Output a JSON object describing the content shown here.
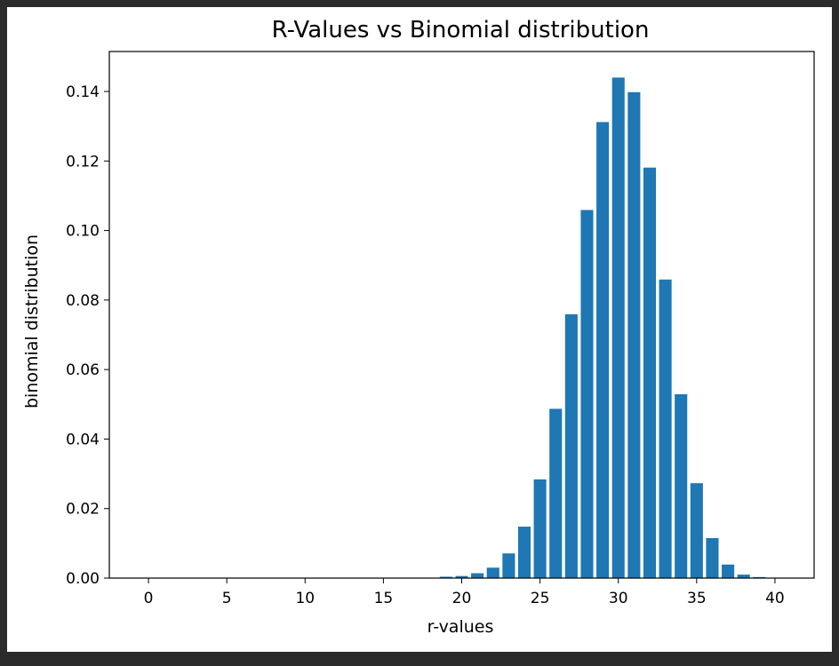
{
  "chart_data": {
    "type": "bar",
    "title": "R-Values vs Binomial distribution",
    "xlabel": "r-values",
    "ylabel": "binomial distribution",
    "xlim": [
      -2.5,
      42.5
    ],
    "ylim": [
      0,
      0.1515
    ],
    "xticks": [
      0,
      5,
      10,
      15,
      20,
      25,
      30,
      35,
      40
    ],
    "xtick_labels": [
      "0",
      "5",
      "10",
      "15",
      "20",
      "25",
      "30",
      "35",
      "40"
    ],
    "yticks": [
      0,
      0.02,
      0.04,
      0.06,
      0.08,
      0.1,
      0.12,
      0.14
    ],
    "ytick_labels": [
      "0.00",
      "0.02",
      "0.04",
      "0.06",
      "0.08",
      "0.10",
      "0.12",
      "0.14"
    ],
    "grid": false,
    "bar_color": "#1f77b4",
    "x": [
      0,
      1,
      2,
      3,
      4,
      5,
      6,
      7,
      8,
      9,
      10,
      11,
      12,
      13,
      14,
      15,
      16,
      17,
      18,
      19,
      20,
      21,
      22,
      23,
      24,
      25,
      26,
      27,
      28,
      29,
      30,
      31,
      32,
      33,
      34,
      35,
      36,
      37,
      38,
      39,
      40
    ],
    "values": [
      0,
      0,
      0,
      0,
      0,
      0,
      0,
      0,
      0,
      0,
      0,
      0,
      0,
      0,
      0,
      0,
      0,
      0,
      0.0001,
      0.0004,
      0.0006,
      0.0014,
      0.003,
      0.0071,
      0.0148,
      0.0284,
      0.0487,
      0.0759,
      0.1059,
      0.1312,
      0.144,
      0.1398,
      0.1181,
      0.0859,
      0.0529,
      0.0273,
      0.0115,
      0.0039,
      0.001,
      0.0003,
      0.0001
    ]
  }
}
